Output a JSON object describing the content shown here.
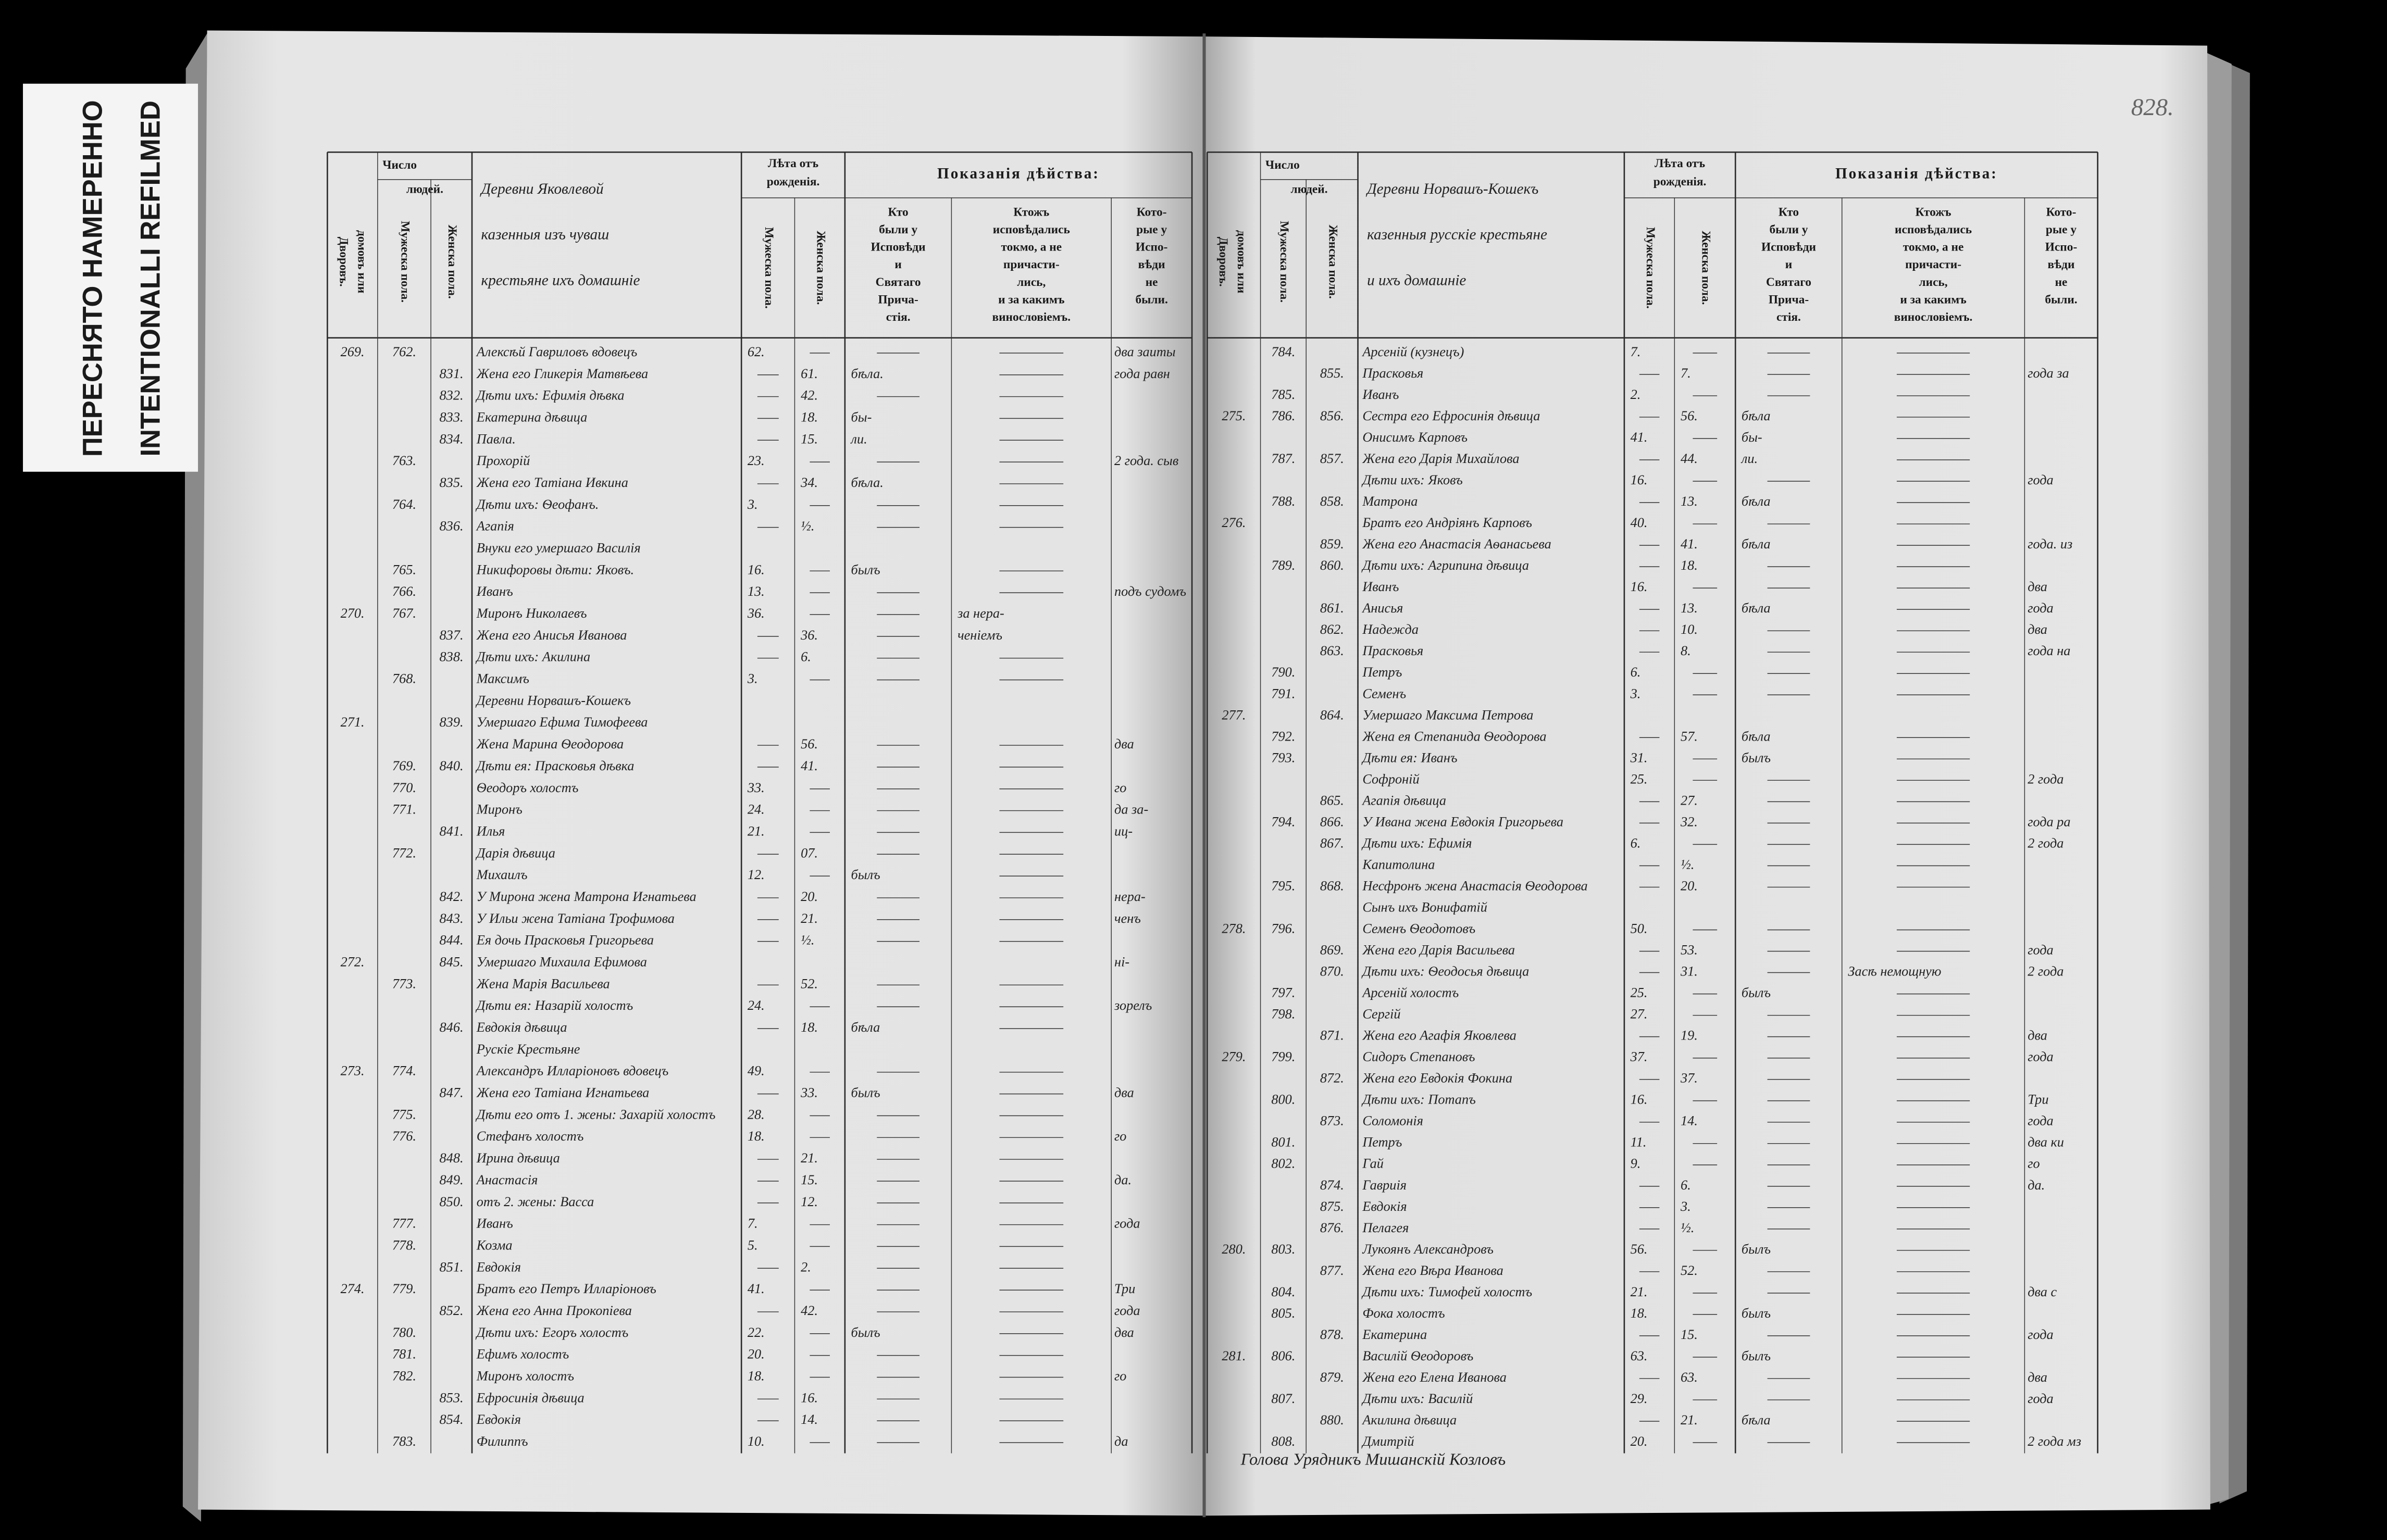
{
  "stamp": [
    "ПЕРЕСНЯТО НАМЕРЕННО",
    "INTENTIONALLI REFILMED"
  ],
  "page_number": "828.",
  "signature": "Голова Урядникъ Мишанскiй Козловъ",
  "pages": [
    {
      "headers": {
        "number": "Число",
        "people": "людей.",
        "households": [
          "Дворовъ.",
          "домовъ или"
        ],
        "male": "Мужеска пола.",
        "female": "Женска пола.",
        "age": [
          "Лѣта отъ",
          "рожденiя."
        ],
        "age_male": "Мужеска пола.",
        "age_female": "Женска пола.",
        "actions": "Показанiя дѣйства:",
        "confessed": [
          "Кто",
          "были у",
          "Исповѣди",
          "и",
          "Святаго",
          "Прича-",
          "стiя."
        ],
        "partial": [
          "Ктожъ",
          "исповѣдались",
          "токмо, а не",
          "причасти-",
          "лись,",
          "и за какимъ",
          "винословiемъ."
        ],
        "absent": [
          "Кото-",
          "рые у",
          "Испо-",
          "вѣди",
          "не",
          "были."
        ]
      },
      "name_header": [
        "Деревни Яковлевой",
        "казенныя изъ чуваш",
        "крестьяне ихъ домашнiе"
      ],
      "rows": [
        {
          "d": "269.",
          "m": "762.",
          "name": "Алексѣй Гавриловъ вдовецъ",
          "ma": "62.",
          "c3": "два заиты"
        },
        {
          "f": "831.",
          "name": "Жена его Гликерiя Матвѣева",
          "fa": "61.",
          "c1": "бѣла.",
          "c3": "года равн"
        },
        {
          "f": "832.",
          "name": "Дѣти ихъ: Ефимiя дѣвка",
          "fa": "42."
        },
        {
          "f": "833.",
          "name": "Екатерина дѣвица",
          "fa": "18.",
          "c1": "бы-"
        },
        {
          "f": "834.",
          "name": "Павла.",
          "fa": "15.",
          "c1": "ли."
        },
        {
          "m": "763.",
          "name": "Прохорiй",
          "ma": "23.",
          "c3": "2 года. сыв"
        },
        {
          "f": "835.",
          "name": "Жена его Татiана Ивкина",
          "fa": "34.",
          "c1": "бѣла."
        },
        {
          "m": "764.",
          "name": "Дѣти ихъ: Ѳеофанъ.",
          "ma": "3."
        },
        {
          "f": "836.",
          "name": "Агапiя",
          "fa": "½."
        },
        {
          "name": "Внуки его умершаго Василiя"
        },
        {
          "m": "765.",
          "name": "Никифоровы дѣти: Яковъ.",
          "ma": "16.",
          "c1": "былъ"
        },
        {
          "m": "766.",
          "name": "Иванъ",
          "ma": "13.",
          "c3": "подъ судомъ"
        },
        {
          "d": "270.",
          "m": "767.",
          "name": "Миронъ Николаевъ",
          "ma": "36.",
          "c2": "за нера-"
        },
        {
          "f": "837.",
          "name": "Жена его Анисья Иванова",
          "fa": "36.",
          "c2": "ченiемъ"
        },
        {
          "f": "838.",
          "name": "Дѣти ихъ: Акилина",
          "fa": "6."
        },
        {
          "m": "768.",
          "name": "Максимъ",
          "ma": "3."
        },
        {
          "name": "Деревни Норвашъ-Кошекъ"
        },
        {
          "d": "271.",
          "f": "839.",
          "name": "Умершаго Ефима Тимофеева"
        },
        {
          "name": "Жена Марина Ѳеодорова",
          "fa": "56.",
          "c3": "два"
        },
        {
          "m": "769.",
          "f": "840.",
          "name": "Дѣти ея: Прасковья дѣвка",
          "fa": "41."
        },
        {
          "m": "770.",
          "name": "Ѳеодоръ холостъ",
          "ma": "33.",
          "c3": "го"
        },
        {
          "m": "771.",
          "name": "Миронъ",
          "ma": "24.",
          "c3": "да за-"
        },
        {
          "f": "841.",
          "name": "Илья",
          "ma": "21.",
          "c3": "иц-"
        },
        {
          "m": "772.",
          "name": "Дарiя дѣвица",
          "fa": "07."
        },
        {
          "name": "Михаилъ",
          "ma": "12.",
          "c1": "былъ"
        },
        {
          "f": "842.",
          "name": "У Мирона жена Матрона Игнатьева",
          "fa": "20.",
          "c3": "нера-"
        },
        {
          "f": "843.",
          "name": "У Ильи жена Татiана Трофимова",
          "fa": "21.",
          "c3": "ченъ"
        },
        {
          "f": "844.",
          "name": "Ея дочь Прасковья Григорьева",
          "fa": "½."
        },
        {
          "d": "272.",
          "f": "845.",
          "name": "Умершаго Михаила Ефимова",
          "c3": "нi-"
        },
        {
          "m": "773.",
          "name": "Жена Марiя Васильева",
          "fa": "52."
        },
        {
          "name": "Дѣти ея: Назарiй холостъ",
          "ma": "24.",
          "c3": "зорелъ"
        },
        {
          "f": "846.",
          "name": "Евдокiя дѣвица",
          "fa": "18.",
          "c1": "бѣла"
        },
        {
          "name": "Рускiе Крестьяне"
        },
        {
          "d": "273.",
          "m": "774.",
          "name": "Александръ Илларiоновъ вдовецъ",
          "ma": "49."
        },
        {
          "f": "847.",
          "name": "Жена его Татiана Игнатьева",
          "fa": "33.",
          "c1": "былъ",
          "c3": "два"
        },
        {
          "m": "775.",
          "name": "Дѣти его отъ 1. жены: Захарiй холостъ",
          "ma": "28."
        },
        {
          "m": "776.",
          "name": "Стефанъ холостъ",
          "ma": "18.",
          "c3": "го"
        },
        {
          "f": "848.",
          "name": "Ирина дѣвица",
          "fa": "21."
        },
        {
          "f": "849.",
          "name": "Анастасiя",
          "fa": "15.",
          "c3": "да."
        },
        {
          "f": "850.",
          "name": "отъ 2. жены: Васса",
          "fa": "12."
        },
        {
          "m": "777.",
          "name": "Иванъ",
          "ma": "7.",
          "c3": "года"
        },
        {
          "m": "778.",
          "name": "Козма",
          "ma": "5."
        },
        {
          "f": "851.",
          "name": "Евдокiя",
          "fa": "2."
        },
        {
          "d": "274.",
          "m": "779.",
          "name": "Братъ его Петръ Илларiоновъ",
          "ma": "41.",
          "c3": "Три"
        },
        {
          "f": "852.",
          "name": "Жена его Анна Прокопiева",
          "fa": "42.",
          "c3": "года"
        },
        {
          "m": "780.",
          "name": "Дѣти ихъ: Егоръ холостъ",
          "ma": "22.",
          "c1": "былъ",
          "c3": "два"
        },
        {
          "m": "781.",
          "name": "Ефимъ холостъ",
          "ma": "20."
        },
        {
          "m": "782.",
          "name": "Миронъ холостъ",
          "ma": "18.",
          "c3": "го"
        },
        {
          "f": "853.",
          "name": "Ефросинiя дѣвица",
          "fa": "16."
        },
        {
          "f": "854.",
          "name": "Евдокiя",
          "fa": "14."
        },
        {
          "m": "783.",
          "name": "Филиппъ",
          "ma": "10.",
          "c3": "да"
        }
      ]
    },
    {
      "headers": {
        "number": "Число",
        "people": "людей.",
        "households": [
          "Дворовъ.",
          "домовъ или"
        ],
        "male": "Мужеска пола.",
        "female": "Женска пола.",
        "age": [
          "Лѣта отъ",
          "рожденiя."
        ],
        "age_male": "Мужеска пола.",
        "age_female": "Женска пола.",
        "actions": "Показанiя дѣйства:",
        "confessed": [
          "Кто",
          "были у",
          "Исповѣди",
          "и",
          "Святаго",
          "Прича-",
          "стiя."
        ],
        "partial": [
          "Ктожъ",
          "исповѣдались",
          "токмо, а не",
          "причасти-",
          "лись,",
          "и за какимъ",
          "винословiемъ."
        ],
        "absent": [
          "Кото-",
          "рые у",
          "Испо-",
          "вѣди",
          "не",
          "были."
        ]
      },
      "name_header": [
        "Деревни Норвашъ-Кошекъ",
        "казенныя русскiе крестьяне",
        "и ихъ домашнiе"
      ],
      "rows": [
        {
          "m": "784.",
          "name": "Арсенiй (кузнецъ)",
          "ma": "7."
        },
        {
          "f": "855.",
          "name": "Прасковья",
          "fa": "7.",
          "c3": "года за"
        },
        {
          "m": "785.",
          "name": "Иванъ",
          "ma": "2."
        },
        {
          "d": "275.",
          "m": "786.",
          "f": "856.",
          "name": "Сестра его Ефросинiя дѣвица",
          "fa": "56.",
          "c1": "бѣла"
        },
        {
          "name": "Онисимъ Карповъ",
          "ma": "41.",
          "c1": "бы-"
        },
        {
          "m": "787.",
          "f": "857.",
          "name": "Жена его Дарiя Михайлова",
          "fa": "44.",
          "c1": "ли."
        },
        {
          "name": "Дѣти ихъ: Яковъ",
          "ma": "16.",
          "c3": "года"
        },
        {
          "m": "788.",
          "f": "858.",
          "name": "Матрона",
          "fa": "13.",
          "c1": "бѣла"
        },
        {
          "d": "276.",
          "name": "Братъ его Андрiянъ Карповъ",
          "ma": "40."
        },
        {
          "f": "859.",
          "name": "Жена его Анастасiя Аѳанасьева",
          "fa": "41.",
          "c1": "бѣла",
          "c3": "года. из"
        },
        {
          "m": "789.",
          "f": "860.",
          "name": "Дѣти ихъ: Агрипина дѣвица",
          "fa": "18."
        },
        {
          "name": "Иванъ",
          "ma": "16.",
          "c3": "два"
        },
        {
          "f": "861.",
          "name": "Анисья",
          "fa": "13.",
          "c1": "бѣла",
          "c3": "года"
        },
        {
          "f": "862.",
          "name": "Надежда",
          "fa": "10.",
          "c3": "два"
        },
        {
          "f": "863.",
          "name": "Прасковья",
          "fa": "8.",
          "c3": "года на"
        },
        {
          "m": "790.",
          "name": "Петръ",
          "ma": "6."
        },
        {
          "m": "791.",
          "name": "Семенъ",
          "ma": "3."
        },
        {
          "d": "277.",
          "f": "864.",
          "name": "Умершаго Максима Петрова"
        },
        {
          "m": "792.",
          "name": "Жена ея Степанида Ѳеодорова",
          "fa": "57.",
          "c1": "бѣла"
        },
        {
          "m": "793.",
          "name": "Дѣти ея: Иванъ",
          "ma": "31.",
          "c1": "былъ"
        },
        {
          "name": "Софронiй",
          "ma": "25.",
          "c3": "2 года"
        },
        {
          "f": "865.",
          "name": "Агапiя дѣвица",
          "fa": "27."
        },
        {
          "m": "794.",
          "f": "866.",
          "name": "У Ивана жена Евдокiя Григорьева",
          "fa": "32.",
          "c3": "года ра"
        },
        {
          "f": "867.",
          "name": "Дѣти ихъ: Ефимiя",
          "ma": "6.",
          "c3": "2 года"
        },
        {
          "name": "Капитолина",
          "fa": "½."
        },
        {
          "m": "795.",
          "f": "868.",
          "name": "Несфронъ жена Анастасiя Ѳеодорова",
          "fa": "20."
        },
        {
          "name": "Сынъ ихъ Вонифатiй"
        },
        {
          "d": "278.",
          "m": "796.",
          "name": "Семенъ Ѳеодотовъ",
          "ma": "50."
        },
        {
          "f": "869.",
          "name": "Жена его Дарiя Васильева",
          "fa": "53.",
          "c3": "года"
        },
        {
          "f": "870.",
          "name": "Дѣти ихъ: Ѳеодосья дѣвица",
          "fa": "31.",
          "c2": "Засѣ немощную",
          "c3": "2 года"
        },
        {
          "m": "797.",
          "name": "Арсенiй холостъ",
          "ma": "25.",
          "c1": "былъ"
        },
        {
          "m": "798.",
          "name": "Сергiй",
          "ma": "27."
        },
        {
          "f": "871.",
          "name": "Жена его Агафiя Яковлева",
          "fa": "19.",
          "c3": "два"
        },
        {
          "d": "279.",
          "m": "799.",
          "name": "Сидоръ Степановъ",
          "ma": "37.",
          "c3": "года"
        },
        {
          "f": "872.",
          "name": "Жена его Евдокiя Фокина",
          "fa": "37."
        },
        {
          "m": "800.",
          "name": "Дѣти ихъ: Потапъ",
          "ma": "16.",
          "c3": "Три"
        },
        {
          "f": "873.",
          "name": "Соломонiя",
          "fa": "14.",
          "c3": "года"
        },
        {
          "m": "801.",
          "name": "Петръ",
          "ma": "11.",
          "c3": "два ки"
        },
        {
          "m": "802.",
          "name": "Гай",
          "ma": "9.",
          "c3": "го"
        },
        {
          "f": "874.",
          "name": "Гавриiя",
          "fa": "6.",
          "c3": "да."
        },
        {
          "f": "875.",
          "name": "Евдокiя",
          "fa": "3."
        },
        {
          "f": "876.",
          "name": "Пелагея",
          "fa": "½."
        },
        {
          "d": "280.",
          "m": "803.",
          "name": "Лукоянъ Александровъ",
          "ma": "56.",
          "c1": "былъ"
        },
        {
          "f": "877.",
          "name": "Жена его Вѣра Иванова",
          "fa": "52."
        },
        {
          "m": "804.",
          "name": "Дѣти ихъ: Тимофей холостъ",
          "ma": "21.",
          "c3": "два с"
        },
        {
          "m": "805.",
          "name": "Фока холостъ",
          "ma": "18.",
          "c1": "былъ"
        },
        {
          "f": "878.",
          "name": "Екатерина",
          "fa": "15.",
          "c3": "года"
        },
        {
          "d": "281.",
          "m": "806.",
          "name": "Василiй Ѳеодоровъ",
          "ma": "63.",
          "c1": "былъ"
        },
        {
          "f": "879.",
          "name": "Жена его Елена Иванова",
          "fa": "63.",
          "c3": "два"
        },
        {
          "m": "807.",
          "name": "Дѣти ихъ: Василiй",
          "ma": "29.",
          "c3": "года"
        },
        {
          "f": "880.",
          "name": "Акилина дѣвица",
          "fa": "21.",
          "c1": "бѣла"
        },
        {
          "m": "808.",
          "name": "Дмитрiй",
          "ma": "20.",
          "c3": "2 года мз"
        }
      ]
    }
  ]
}
